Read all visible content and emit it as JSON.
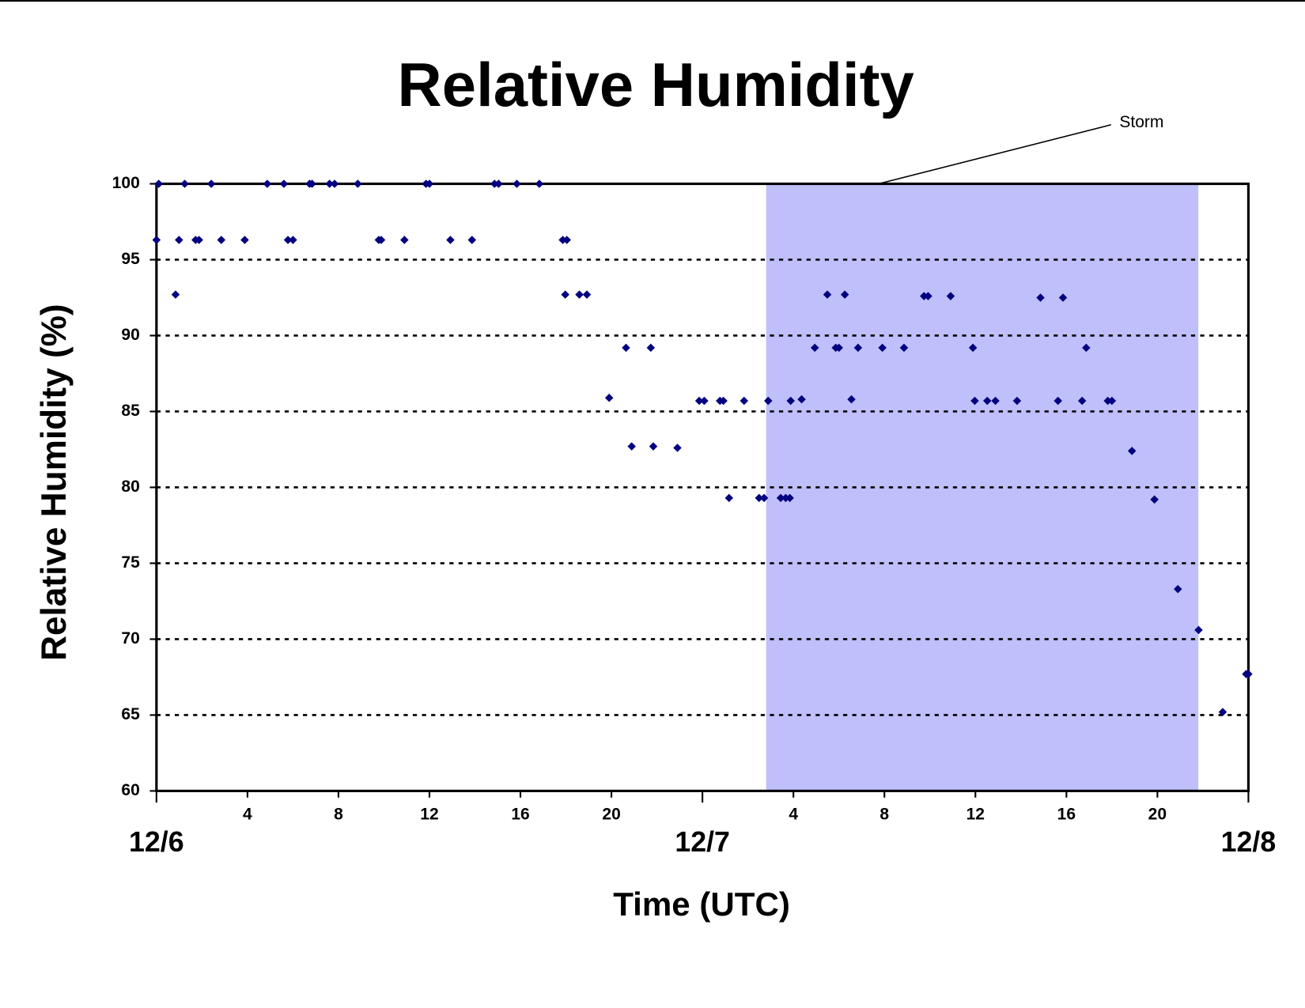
{
  "chart_data": {
    "type": "scatter",
    "title": "Relative Humidity",
    "x_label": "Time (UTC)",
    "y_label": "Relative Humidity (%)",
    "color": "#000080",
    "grid": true,
    "shaded_regions": [
      {
        "x": [
          26.8,
          45.8
        ],
        "label": "Storm",
        "color": "#bfbffb"
      }
    ],
    "xlim": [
      0,
      48
    ],
    "ylim": [
      60,
      100
    ],
    "xticks": [
      {
        "value": 0,
        "label": "12/6"
      },
      4,
      8,
      12,
      16,
      20,
      {
        "value": 24,
        "label": "12/7"
      },
      {
        "value": 28,
        "label": "4"
      },
      {
        "value": 32,
        "label": "8"
      },
      {
        "value": 36,
        "label": "12"
      },
      {
        "value": 40,
        "label": "16"
      },
      {
        "value": 44,
        "label": "20"
      },
      {
        "value": 48,
        "label": "12/8"
      }
    ],
    "yticks": [
      60,
      65,
      70,
      75,
      80,
      85,
      90,
      95,
      100
    ],
    "x": [
      0,
      0.1,
      0.84,
      0.99,
      1.24,
      1.72,
      1.87,
      2.41,
      2.85,
      3.88,
      4.87,
      5.6,
      5.78,
      6.0,
      6.73,
      6.84,
      7.61,
      7.83,
      8.85,
      9.77,
      9.88,
      10.9,
      11.85,
      12.0,
      12.92,
      13.87,
      14.86,
      15.04,
      15.84,
      16.83,
      17.86,
      18.04,
      17.97,
      18.59,
      18.92,
      19.9,
      20.64,
      20.89,
      21.73,
      21.84,
      22.9,
      23.86,
      24.08,
      24.77,
      24.92,
      25.17,
      25.83,
      26.49,
      26.71,
      26.89,
      27.44,
      27.66,
      27.84,
      27.88,
      28.36,
      28.94,
      29.49,
      29.86,
      30.0,
      30.26,
      30.55,
      30.84,
      31.91,
      32.86,
      33.74,
      33.92,
      34.91,
      35.89,
      35.97,
      36.52,
      36.88,
      37.83,
      38.86,
      39.63,
      39.85,
      40.69,
      40.87,
      41.82,
      42.0,
      42.88,
      43.87,
      44.9,
      45.81,
      46.87,
      47.9,
      48
    ],
    "values": [
      96.3,
      100,
      92.7,
      96.3,
      100,
      96.3,
      96.3,
      100,
      96.3,
      96.3,
      100,
      100,
      96.3,
      96.3,
      100,
      100,
      100,
      100,
      100,
      96.3,
      96.3,
      96.3,
      100,
      100,
      96.3,
      96.3,
      100,
      100,
      100,
      100,
      96.3,
      96.3,
      92.7,
      92.7,
      92.7,
      85.9,
      89.2,
      82.7,
      89.2,
      82.7,
      82.6,
      85.7,
      85.7,
      85.7,
      85.7,
      79.3,
      85.7,
      79.3,
      79.3,
      85.7,
      79.3,
      79.3,
      79.3,
      85.7,
      85.8,
      89.2,
      92.7,
      89.2,
      89.2,
      92.7,
      85.8,
      89.2,
      89.2,
      89.2,
      92.6,
      92.6,
      92.6,
      89.2,
      85.7,
      85.7,
      85.7,
      85.7,
      92.5,
      85.7,
      92.5,
      85.7,
      89.2,
      85.7,
      85.7,
      82.4,
      79.2,
      73.3,
      70.6,
      65.2,
      67.7,
      67.7
    ]
  }
}
